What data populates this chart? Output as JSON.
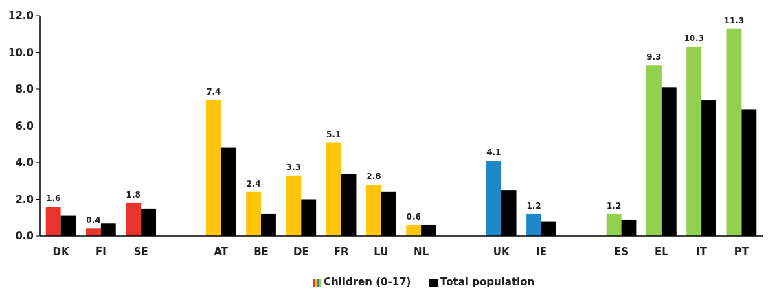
{
  "chart_data": {
    "type": "bar",
    "categories": [
      "DK",
      "FI",
      "SE",
      null,
      "AT",
      "BE",
      "DE",
      "FR",
      "LU",
      "NL",
      null,
      "UK",
      "IE",
      null,
      "ES",
      "EL",
      "IT",
      "PT"
    ],
    "series": [
      {
        "name": "Children (0-17)",
        "colors": [
          "#e8342b",
          "#e8342b",
          "#e8342b",
          null,
          "#ffc60b",
          "#ffc60b",
          "#ffc60b",
          "#ffc60b",
          "#ffc60b",
          "#ffc60b",
          null,
          "#1f88c9",
          "#1f88c9",
          null,
          "#92d050",
          "#92d050",
          "#92d050",
          "#92d050"
        ],
        "values": [
          1.6,
          0.4,
          1.8,
          null,
          7.4,
          2.4,
          3.3,
          5.1,
          2.8,
          0.6,
          null,
          4.1,
          1.2,
          null,
          1.2,
          9.3,
          10.3,
          11.3
        ],
        "value_labels": [
          "1.6",
          "0.4",
          "1.8",
          null,
          "7.4",
          "2.4",
          "3.3",
          "5.1",
          "2.8",
          "0.6",
          null,
          "4.1",
          "1.2",
          null,
          "1.2",
          "9.3",
          "10.3",
          "11.3"
        ]
      },
      {
        "name": "Total population",
        "color": "#000000",
        "values": [
          1.1,
          0.7,
          1.5,
          null,
          4.8,
          1.2,
          2.0,
          3.4,
          2.4,
          0.6,
          null,
          2.5,
          0.8,
          null,
          0.9,
          8.1,
          7.4,
          6.9
        ]
      }
    ],
    "ylim": [
      0,
      12
    ],
    "yticks": [
      {
        "value": 0,
        "label": "0.0"
      },
      {
        "value": 2,
        "label": "2.0"
      },
      {
        "value": 4,
        "label": "4.0"
      },
      {
        "value": 6,
        "label": "6.0"
      },
      {
        "value": 8,
        "label": "8.0"
      },
      {
        "value": 10,
        "label": "10.0"
      },
      {
        "value": 12,
        "label": "12.0"
      }
    ],
    "grid": false,
    "legend": "bottom"
  }
}
